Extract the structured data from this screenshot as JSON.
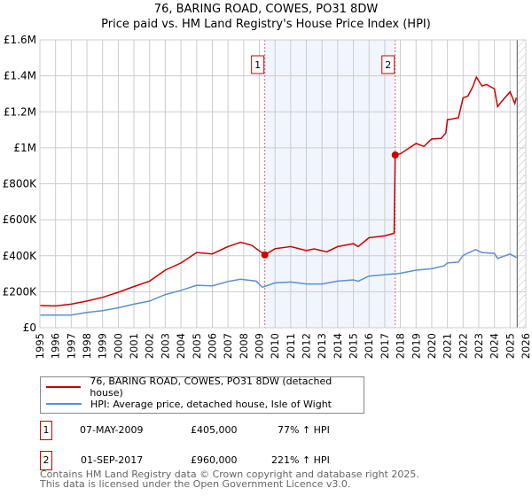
{
  "chart_data": {
    "type": "line",
    "title": "76, BARING ROAD, COWES, PO31 8DW",
    "subtitle": "Price paid vs. HM Land Registry's House Price Index (HPI)",
    "xlim": [
      1995,
      2026
    ],
    "ylim": [
      0,
      1600000
    ],
    "x_ticks": [
      "1995",
      "1996",
      "1997",
      "1998",
      "1999",
      "2000",
      "2001",
      "2002",
      "2003",
      "2004",
      "2005",
      "2006",
      "2007",
      "2008",
      "2009",
      "2010",
      "2011",
      "2012",
      "2013",
      "2014",
      "2015",
      "2016",
      "2017",
      "2018",
      "2019",
      "2020",
      "2021",
      "2022",
      "2023",
      "2024",
      "2025",
      "2026"
    ],
    "y_ticks": [
      {
        "v": 0,
        "label": "£0"
      },
      {
        "v": 200000,
        "label": "£200K"
      },
      {
        "v": 400000,
        "label": "£400K"
      },
      {
        "v": 600000,
        "label": "£600K"
      },
      {
        "v": 800000,
        "label": "£800K"
      },
      {
        "v": 1000000,
        "label": "£1M"
      },
      {
        "v": 1200000,
        "label": "£1.2M"
      },
      {
        "v": 1400000,
        "label": "£1.4M"
      },
      {
        "v": 1600000,
        "label": "£1.6M"
      }
    ],
    "grid": true,
    "shaded_range": [
      2009.35,
      2017.67
    ],
    "hatched_from": 2025.45,
    "series": [
      {
        "name": "76, BARING ROAD, COWES, PO31 8DW (detached house)",
        "color": "#cc0000",
        "points": [
          [
            1995,
            123000
          ],
          [
            1996,
            121000
          ],
          [
            1997,
            131000
          ],
          [
            1998,
            148000
          ],
          [
            1999,
            169000
          ],
          [
            2000,
            197000
          ],
          [
            2001,
            229000
          ],
          [
            2002,
            259000
          ],
          [
            2003,
            320000
          ],
          [
            2004,
            360000
          ],
          [
            2005,
            418000
          ],
          [
            2006,
            410000
          ],
          [
            2007,
            451000
          ],
          [
            2007.8,
            475000
          ],
          [
            2008.5,
            459000
          ],
          [
            2009.35,
            405000
          ],
          [
            2010,
            439000
          ],
          [
            2011,
            451000
          ],
          [
            2012,
            429000
          ],
          [
            2012.5,
            438000
          ],
          [
            2013.3,
            422000
          ],
          [
            2014,
            451000
          ],
          [
            2015,
            467000
          ],
          [
            2015.3,
            451000
          ],
          [
            2016,
            500000
          ],
          [
            2017,
            511000
          ],
          [
            2017.6,
            525000
          ],
          [
            2017.67,
            960000
          ],
          [
            2018,
            967000
          ],
          [
            2019,
            1024000
          ],
          [
            2019.5,
            1008000
          ],
          [
            2020,
            1049000
          ],
          [
            2020.6,
            1052000
          ],
          [
            2020.9,
            1082000
          ],
          [
            2021,
            1156000
          ],
          [
            2021.7,
            1167000
          ],
          [
            2022,
            1278000
          ],
          [
            2022.3,
            1287000
          ],
          [
            2022.6,
            1336000
          ],
          [
            2022.85,
            1393000
          ],
          [
            2023.2,
            1344000
          ],
          [
            2023.5,
            1352000
          ],
          [
            2024,
            1328000
          ],
          [
            2024.2,
            1229000
          ],
          [
            2024.5,
            1262000
          ],
          [
            2025,
            1311000
          ],
          [
            2025.3,
            1246000
          ],
          [
            2025.4,
            1279000
          ]
        ]
      },
      {
        "name": "HPI: Average price, detached house, Isle of Wight",
        "color": "#5b8fd4",
        "points": [
          [
            1995,
            70000
          ],
          [
            1997,
            70000
          ],
          [
            1998,
            85000
          ],
          [
            1999,
            95000
          ],
          [
            2000,
            111000
          ],
          [
            2001,
            131000
          ],
          [
            2002,
            148000
          ],
          [
            2003,
            184000
          ],
          [
            2004,
            208000
          ],
          [
            2005,
            236000
          ],
          [
            2006,
            233000
          ],
          [
            2007,
            257000
          ],
          [
            2007.8,
            270000
          ],
          [
            2008.8,
            259000
          ],
          [
            2009.2,
            225000
          ],
          [
            2010,
            249000
          ],
          [
            2011,
            254000
          ],
          [
            2012,
            243000
          ],
          [
            2013,
            243000
          ],
          [
            2014,
            259000
          ],
          [
            2015,
            266000
          ],
          [
            2015.3,
            258000
          ],
          [
            2016,
            287000
          ],
          [
            2017,
            295000
          ],
          [
            2018,
            303000
          ],
          [
            2019,
            320000
          ],
          [
            2020,
            328000
          ],
          [
            2020.8,
            344000
          ],
          [
            2021,
            360000
          ],
          [
            2021.7,
            365000
          ],
          [
            2022,
            402000
          ],
          [
            2022.8,
            434000
          ],
          [
            2023.2,
            418000
          ],
          [
            2024,
            413000
          ],
          [
            2024.2,
            385000
          ],
          [
            2025,
            410000
          ],
          [
            2025.4,
            390000
          ]
        ]
      }
    ],
    "sales": [
      {
        "label": "1",
        "x": 2009.35,
        "price": 405000
      },
      {
        "label": "2",
        "x": 2017.67,
        "price": 960000
      }
    ]
  },
  "legend": {
    "items": [
      "76, BARING ROAD, COWES, PO31 8DW (detached house)",
      "HPI: Average price, detached house, Isle of Wight"
    ]
  },
  "transactions": [
    {
      "num": "1",
      "date": "07-MAY-2009",
      "price": "£405,000",
      "hpi": "77% ↑ HPI"
    },
    {
      "num": "2",
      "date": "01-SEP-2017",
      "price": "£960,000",
      "hpi": "221% ↑ HPI"
    }
  ],
  "footer": {
    "line1": "Contains HM Land Registry data © Crown copyright and database right 2025.",
    "line2": "This data is licensed under the Open Government Licence v3.0."
  }
}
